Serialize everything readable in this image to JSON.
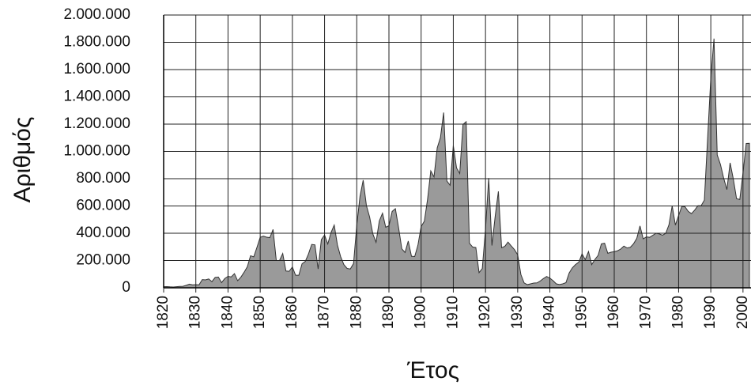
{
  "chart_data": {
    "type": "area",
    "x_label": "Έτος",
    "y_label": "Αριθμός",
    "color": "#9a9a9a",
    "line_color": "#333333",
    "grid": true,
    "xlim": [
      1820,
      2002
    ],
    "xticks": [
      1820,
      1830,
      1840,
      1850,
      1860,
      1870,
      1880,
      1890,
      1900,
      1910,
      1920,
      1930,
      1940,
      1950,
      1960,
      1970,
      1980,
      1990,
      2000
    ],
    "ylim": [
      0,
      2000000
    ],
    "yticks": [
      0,
      {
        "value": 200000,
        "label": "200.000"
      },
      {
        "value": 400000,
        "label": "400.000"
      },
      {
        "value": 600000,
        "label": "600.000"
      },
      {
        "value": 800000,
        "label": "800.000"
      },
      {
        "value": 1000000,
        "label": "1.000.000"
      },
      {
        "value": 1200000,
        "label": "1.200.000"
      },
      {
        "value": 1400000,
        "label": "1.400.000"
      },
      {
        "value": 1600000,
        "label": "1.600.000"
      },
      {
        "value": 1800000,
        "label": "1.800.000"
      },
      {
        "value": 2000000,
        "label": "2.000.000"
      }
    ],
    "x": [
      1820,
      1821,
      1822,
      1823,
      1824,
      1825,
      1826,
      1827,
      1828,
      1829,
      1830,
      1831,
      1832,
      1833,
      1834,
      1835,
      1836,
      1837,
      1838,
      1839,
      1840,
      1841,
      1842,
      1843,
      1844,
      1845,
      1846,
      1847,
      1848,
      1849,
      1850,
      1851,
      1852,
      1853,
      1854,
      1855,
      1856,
      1857,
      1858,
      1859,
      1860,
      1861,
      1862,
      1863,
      1864,
      1865,
      1866,
      1867,
      1868,
      1869,
      1870,
      1871,
      1872,
      1873,
      1874,
      1875,
      1876,
      1877,
      1878,
      1879,
      1880,
      1881,
      1882,
      1883,
      1884,
      1885,
      1886,
      1887,
      1888,
      1889,
      1890,
      1891,
      1892,
      1893,
      1894,
      1895,
      1896,
      1897,
      1898,
      1899,
      1900,
      1901,
      1902,
      1903,
      1904,
      1905,
      1906,
      1907,
      1908,
      1909,
      1910,
      1911,
      1912,
      1913,
      1914,
      1915,
      1916,
      1917,
      1918,
      1919,
      1920,
      1921,
      1922,
      1923,
      1924,
      1925,
      1926,
      1927,
      1928,
      1929,
      1930,
      1931,
      1932,
      1933,
      1934,
      1935,
      1936,
      1937,
      1938,
      1939,
      1940,
      1941,
      1942,
      1943,
      1944,
      1945,
      1946,
      1947,
      1948,
      1949,
      1950,
      1951,
      1952,
      1953,
      1954,
      1955,
      1956,
      1957,
      1958,
      1959,
      1960,
      1961,
      1962,
      1963,
      1964,
      1965,
      1966,
      1967,
      1968,
      1969,
      1970,
      1971,
      1972,
      1973,
      1974,
      1975,
      1976,
      1977,
      1978,
      1979,
      1980,
      1981,
      1982,
      1983,
      1984,
      1985,
      1986,
      1987,
      1988,
      1989,
      1990,
      1991,
      1992,
      1993,
      1994,
      1995,
      1996,
      1997,
      1998,
      1999,
      2000,
      2001,
      2002
    ],
    "values": [
      8000,
      9000,
      7000,
      6000,
      8000,
      10000,
      11000,
      18000,
      27000,
      22000,
      23000,
      22000,
      60000,
      58000,
      65000,
      45000,
      76000,
      79000,
      38000,
      68000,
      84000,
      80000,
      104000,
      52000,
      78000,
      114000,
      154000,
      235000,
      227000,
      297000,
      370000,
      379000,
      371000,
      368000,
      428000,
      200000,
      200000,
      251000,
      123000,
      121000,
      153000,
      92000,
      92000,
      176000,
      193000,
      248000,
      318000,
      315000,
      138000,
      353000,
      387000,
      321000,
      405000,
      460000,
      313000,
      228000,
      170000,
      142000,
      138000,
      178000,
      457000,
      669000,
      789000,
      603000,
      519000,
      395000,
      334000,
      490000,
      547000,
      444000,
      455000,
      560000,
      580000,
      440000,
      286000,
      259000,
      343000,
      231000,
      229000,
      312000,
      449000,
      488000,
      649000,
      857000,
      813000,
      1026000,
      1101000,
      1285000,
      783000,
      752000,
      1042000,
      879000,
      838000,
      1198000,
      1218000,
      327000,
      299000,
      295000,
      111000,
      141000,
      430000,
      805000,
      310000,
      523000,
      707000,
      294000,
      304000,
      335000,
      307000,
      280000,
      242000,
      97000,
      36000,
      23000,
      29000,
      35000,
      36000,
      50000,
      68000,
      83000,
      71000,
      52000,
      29000,
      24000,
      29000,
      38000,
      109000,
      147000,
      171000,
      188000,
      249000,
      206000,
      266000,
      170000,
      208000,
      238000,
      322000,
      327000,
      253000,
      261000,
      265000,
      271000,
      284000,
      306000,
      292000,
      297000,
      323000,
      362000,
      454000,
      359000,
      373000,
      370000,
      385000,
      400000,
      395000,
      386000,
      399000,
      462000,
      601000,
      460000,
      531000,
      597000,
      594000,
      560000,
      544000,
      570000,
      602000,
      602000,
      643000,
      1091000,
      1536000,
      1827000,
      974000,
      904000,
      804000,
      720000,
      916000,
      798000,
      654000,
      647000,
      841000,
      1058000,
      1059000
    ]
  }
}
